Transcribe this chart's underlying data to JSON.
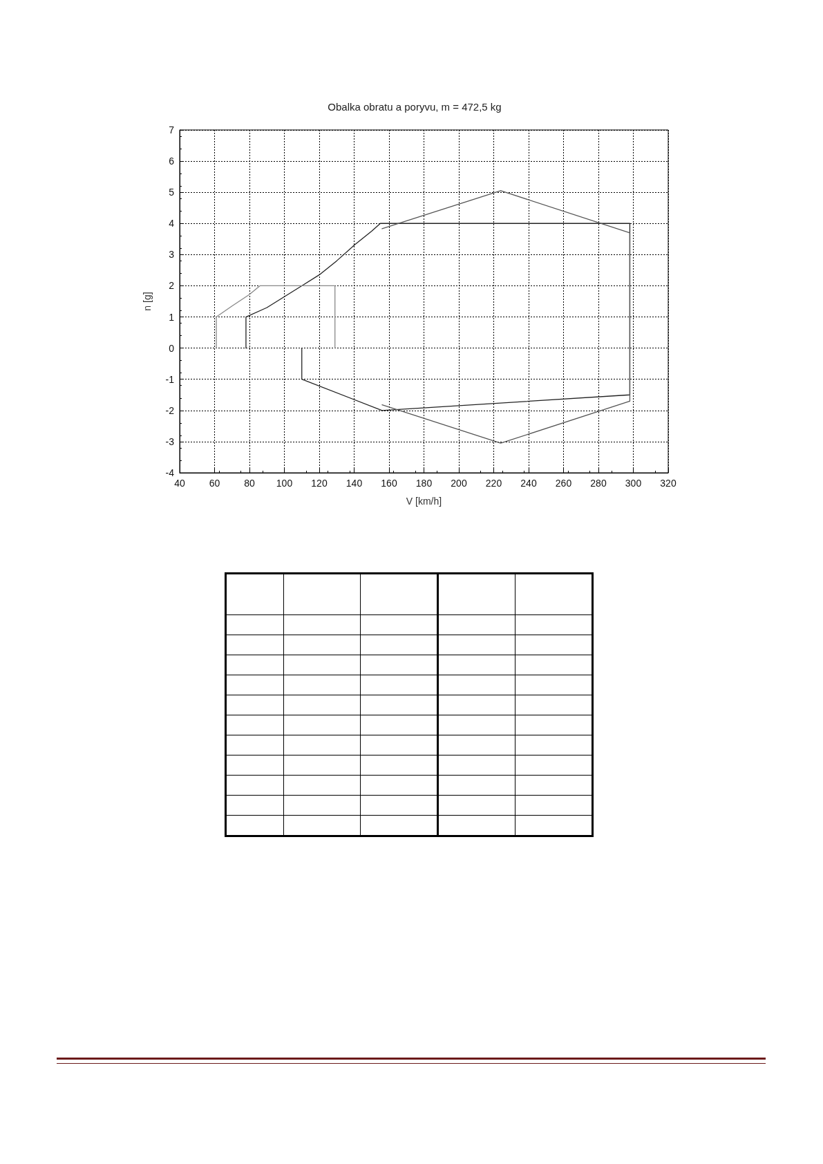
{
  "chart_data": {
    "type": "line",
    "title": "Obalka obratu a poryvu, m = 472,5 kg",
    "xlabel": "V [km/h]",
    "ylabel": "n [g]",
    "series": [
      {
        "color": "#222222",
        "x": [
          78,
          78,
          90,
          100,
          110,
          120,
          130,
          140,
          150,
          155,
          298,
          298,
          156,
          110,
          110
        ],
        "values": [
          0,
          1,
          1.3,
          1.65,
          2,
          2.35,
          2.8,
          3.3,
          3.75,
          4,
          4,
          -1.5,
          -2,
          -1,
          0
        ]
      },
      {
        "color": "#888888",
        "x": [
          61,
          61,
          70,
          80,
          86,
          129,
          129
        ],
        "values": [
          0,
          1,
          1.35,
          1.72,
          2,
          2,
          0
        ]
      },
      {
        "color": "#555555",
        "x": [
          156,
          224,
          298,
          298,
          224,
          156
        ],
        "values": [
          3.83,
          5.05,
          3.7,
          -1.7,
          -3.05,
          -1.82
        ]
      }
    ],
    "xlim": [
      40,
      320
    ],
    "xticks": [
      40,
      60,
      80,
      100,
      120,
      140,
      160,
      180,
      200,
      220,
      240,
      260,
      280,
      300,
      320
    ],
    "ylim": [
      -4,
      7
    ],
    "yticks": [
      -4,
      -3,
      -2,
      -1,
      0,
      1,
      2,
      3,
      4,
      5,
      6,
      7
    ],
    "grid": true,
    "marker": "none",
    "line_style": "solid"
  }
}
